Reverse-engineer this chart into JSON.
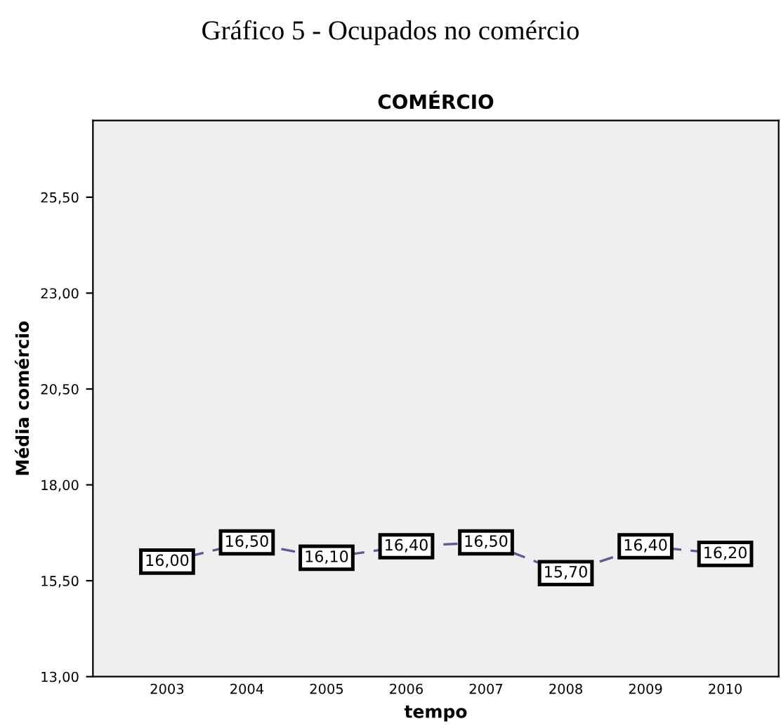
{
  "chart_data": {
    "type": "line",
    "title": "COMÉRCIO",
    "subtitle": "Gráfico 5 - Ocupados no comércio",
    "xlabel": "tempo",
    "ylabel": "Média comércio",
    "categories": [
      "2003",
      "2004",
      "2005",
      "2006",
      "2007",
      "2008",
      "2009",
      "2010"
    ],
    "series": [
      {
        "color": "#5b5b9b",
        "values": [
          16.0,
          16.5,
          16.1,
          16.4,
          16.5,
          15.7,
          16.4,
          16.2
        ]
      }
    ],
    "ylim": [
      13,
      27.5
    ],
    "yticks": [
      {
        "value": 13,
        "label": "13,00"
      },
      {
        "value": 15.5,
        "label": "15,50"
      },
      {
        "value": 18,
        "label": "18,00"
      },
      {
        "value": 20.5,
        "label": "20,50"
      },
      {
        "value": 23,
        "label": "23,00"
      },
      {
        "value": 25.5,
        "label": "25,50"
      }
    ],
    "value_labels": [
      "16,00",
      "16,50",
      "16,10",
      "16,40",
      "16,50",
      "15,70",
      "16,40",
      "16,20"
    ],
    "line_style": "dashed",
    "grid": false,
    "marker": "square"
  }
}
